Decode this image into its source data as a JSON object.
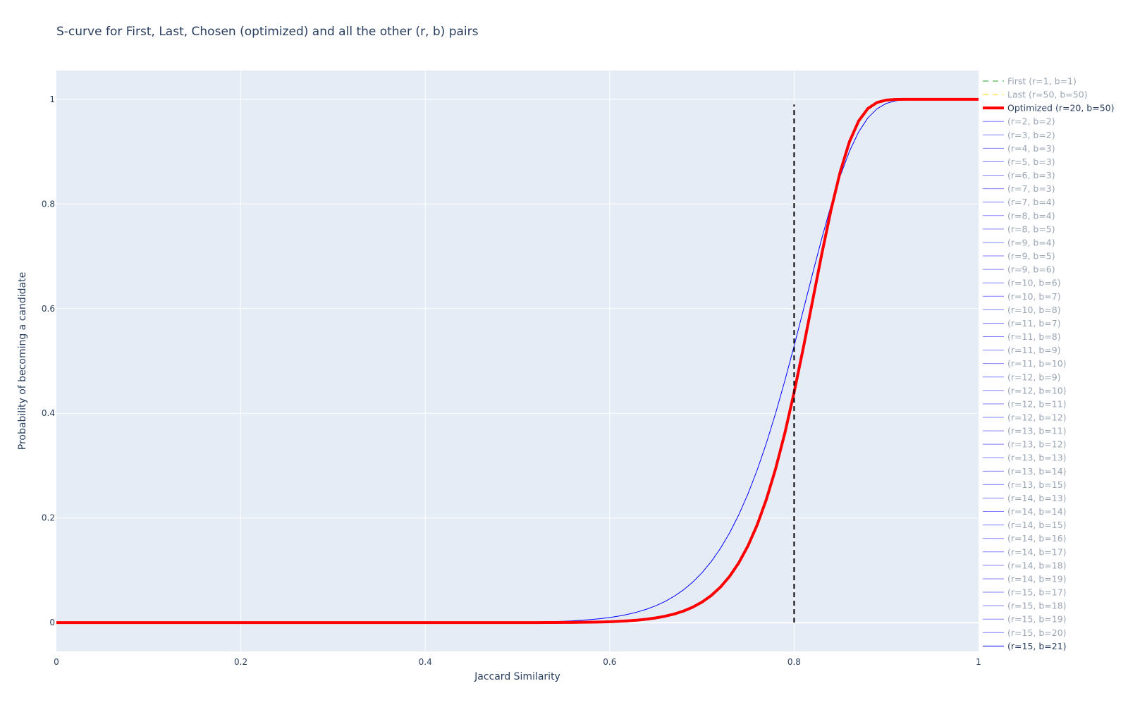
{
  "chart_data": {
    "type": "line",
    "title": "S-curve for First, Last, Chosen (optimized) and all the other (r, b) pairs",
    "xlabel": "Jaccard Similarity",
    "ylabel": "Probability of becoming a candidate",
    "xlim": [
      0,
      1
    ],
    "ylim": [
      -0.055,
      1.055
    ],
    "x_ticks": [
      0,
      0.2,
      0.4,
      0.6,
      0.8,
      1
    ],
    "x_tick_labels": [
      "0",
      "0.2",
      "0.4",
      "0.6",
      "0.8",
      "1"
    ],
    "y_ticks": [
      0,
      0.2,
      0.4,
      0.6,
      0.8,
      1
    ],
    "y_tick_labels": [
      "0",
      "0.2",
      "0.4",
      "0.6",
      "0.8",
      "1"
    ],
    "grid": true,
    "plot_background": "#e5ecf6",
    "grid_color": "#ffffff",
    "legend_position": "right",
    "threshold_line": {
      "x": 0.8,
      "y_range": [
        0,
        0.99
      ],
      "color": "#000000",
      "style": "dash"
    },
    "series": [
      {
        "name": "First (r=1, b=1)",
        "r": 1,
        "b": 1,
        "color": "#2ca02c",
        "style": "dash",
        "width": 2,
        "visible": false
      },
      {
        "name": "Last (r=50, b=50)",
        "r": 50,
        "b": 50,
        "color": "#ffd700",
        "style": "dash",
        "width": 2,
        "visible": false
      },
      {
        "name": "Optimized (r=20, b=50)",
        "r": 20,
        "b": 50,
        "color": "#ff0000",
        "style": "solid",
        "width": 4,
        "visible": true
      },
      {
        "name": "(r=2, b=2)",
        "r": 2,
        "b": 2,
        "color": "#0000ff",
        "style": "solid",
        "width": 1,
        "visible": false
      },
      {
        "name": "(r=3, b=2)",
        "r": 3,
        "b": 2,
        "color": "#0000ff",
        "style": "solid",
        "width": 1,
        "visible": false
      },
      {
        "name": "(r=4, b=3)",
        "r": 4,
        "b": 3,
        "color": "#0000ff",
        "style": "solid",
        "width": 1,
        "visible": false
      },
      {
        "name": "(r=5, b=3)",
        "r": 5,
        "b": 3,
        "color": "#0000ff",
        "style": "solid",
        "width": 1,
        "visible": false
      },
      {
        "name": "(r=6, b=3)",
        "r": 6,
        "b": 3,
        "color": "#0000ff",
        "style": "solid",
        "width": 1,
        "visible": false
      },
      {
        "name": "(r=7, b=3)",
        "r": 7,
        "b": 3,
        "color": "#0000ff",
        "style": "solid",
        "width": 1,
        "visible": false
      },
      {
        "name": "(r=7, b=4)",
        "r": 7,
        "b": 4,
        "color": "#0000ff",
        "style": "solid",
        "width": 1,
        "visible": false
      },
      {
        "name": "(r=8, b=4)",
        "r": 8,
        "b": 4,
        "color": "#0000ff",
        "style": "solid",
        "width": 1,
        "visible": false
      },
      {
        "name": "(r=8, b=5)",
        "r": 8,
        "b": 5,
        "color": "#0000ff",
        "style": "solid",
        "width": 1,
        "visible": false
      },
      {
        "name": "(r=9, b=4)",
        "r": 9,
        "b": 4,
        "color": "#0000ff",
        "style": "solid",
        "width": 1,
        "visible": false
      },
      {
        "name": "(r=9, b=5)",
        "r": 9,
        "b": 5,
        "color": "#0000ff",
        "style": "solid",
        "width": 1,
        "visible": false
      },
      {
        "name": "(r=9, b=6)",
        "r": 9,
        "b": 6,
        "color": "#0000ff",
        "style": "solid",
        "width": 1,
        "visible": false
      },
      {
        "name": "(r=10, b=6)",
        "r": 10,
        "b": 6,
        "color": "#0000ff",
        "style": "solid",
        "width": 1,
        "visible": false
      },
      {
        "name": "(r=10, b=7)",
        "r": 10,
        "b": 7,
        "color": "#0000ff",
        "style": "solid",
        "width": 1,
        "visible": false
      },
      {
        "name": "(r=10, b=8)",
        "r": 10,
        "b": 8,
        "color": "#0000ff",
        "style": "solid",
        "width": 1,
        "visible": false
      },
      {
        "name": "(r=11, b=7)",
        "r": 11,
        "b": 7,
        "color": "#0000ff",
        "style": "solid",
        "width": 1,
        "visible": false
      },
      {
        "name": "(r=11, b=8)",
        "r": 11,
        "b": 8,
        "color": "#0000ff",
        "style": "solid",
        "width": 1,
        "visible": false
      },
      {
        "name": "(r=11, b=9)",
        "r": 11,
        "b": 9,
        "color": "#0000ff",
        "style": "solid",
        "width": 1,
        "visible": false
      },
      {
        "name": "(r=11, b=10)",
        "r": 11,
        "b": 10,
        "color": "#0000ff",
        "style": "solid",
        "width": 1,
        "visible": false
      },
      {
        "name": "(r=12, b=9)",
        "r": 12,
        "b": 9,
        "color": "#0000ff",
        "style": "solid",
        "width": 1,
        "visible": false
      },
      {
        "name": "(r=12, b=10)",
        "r": 12,
        "b": 10,
        "color": "#0000ff",
        "style": "solid",
        "width": 1,
        "visible": false
      },
      {
        "name": "(r=12, b=11)",
        "r": 12,
        "b": 11,
        "color": "#0000ff",
        "style": "solid",
        "width": 1,
        "visible": false
      },
      {
        "name": "(r=12, b=12)",
        "r": 12,
        "b": 12,
        "color": "#0000ff",
        "style": "solid",
        "width": 1,
        "visible": false
      },
      {
        "name": "(r=13, b=11)",
        "r": 13,
        "b": 11,
        "color": "#0000ff",
        "style": "solid",
        "width": 1,
        "visible": false
      },
      {
        "name": "(r=13, b=12)",
        "r": 13,
        "b": 12,
        "color": "#0000ff",
        "style": "solid",
        "width": 1,
        "visible": false
      },
      {
        "name": "(r=13, b=13)",
        "r": 13,
        "b": 13,
        "color": "#0000ff",
        "style": "solid",
        "width": 1,
        "visible": false
      },
      {
        "name": "(r=13, b=14)",
        "r": 13,
        "b": 14,
        "color": "#0000ff",
        "style": "solid",
        "width": 1,
        "visible": false
      },
      {
        "name": "(r=13, b=15)",
        "r": 13,
        "b": 15,
        "color": "#0000ff",
        "style": "solid",
        "width": 1,
        "visible": false
      },
      {
        "name": "(r=14, b=13)",
        "r": 14,
        "b": 13,
        "color": "#0000ff",
        "style": "solid",
        "width": 1,
        "visible": false
      },
      {
        "name": "(r=14, b=14)",
        "r": 14,
        "b": 14,
        "color": "#0000ff",
        "style": "solid",
        "width": 1,
        "visible": false
      },
      {
        "name": "(r=14, b=15)",
        "r": 14,
        "b": 15,
        "color": "#0000ff",
        "style": "solid",
        "width": 1,
        "visible": false
      },
      {
        "name": "(r=14, b=16)",
        "r": 14,
        "b": 16,
        "color": "#0000ff",
        "style": "solid",
        "width": 1,
        "visible": false
      },
      {
        "name": "(r=14, b=17)",
        "r": 14,
        "b": 17,
        "color": "#0000ff",
        "style": "solid",
        "width": 1,
        "visible": false
      },
      {
        "name": "(r=14, b=18)",
        "r": 14,
        "b": 18,
        "color": "#0000ff",
        "style": "solid",
        "width": 1,
        "visible": false
      },
      {
        "name": "(r=14, b=19)",
        "r": 14,
        "b": 19,
        "color": "#0000ff",
        "style": "solid",
        "width": 1,
        "visible": false
      },
      {
        "name": "(r=15, b=17)",
        "r": 15,
        "b": 17,
        "color": "#0000ff",
        "style": "solid",
        "width": 1,
        "visible": false
      },
      {
        "name": "(r=15, b=18)",
        "r": 15,
        "b": 18,
        "color": "#0000ff",
        "style": "solid",
        "width": 1,
        "visible": false
      },
      {
        "name": "(r=15, b=19)",
        "r": 15,
        "b": 19,
        "color": "#0000ff",
        "style": "solid",
        "width": 1,
        "visible": false
      },
      {
        "name": "(r=15, b=20)",
        "r": 15,
        "b": 20,
        "color": "#0000ff",
        "style": "solid",
        "width": 1,
        "visible": false
      },
      {
        "name": "(r=15, b=21)",
        "r": 15,
        "b": 21,
        "color": "#0000ff",
        "style": "solid",
        "width": 1,
        "visible": true
      }
    ]
  }
}
